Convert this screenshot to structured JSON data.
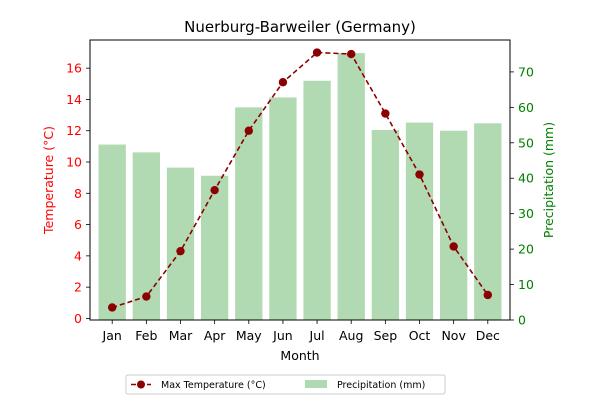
{
  "chart_data": {
    "type": "bar",
    "title": "Nuerburg-Barweiler (Germany)",
    "xlabel": "Month",
    "ylabel_left": "Temperature (°C)",
    "ylabel_right": "Precipitation (mm)",
    "categories": [
      "Jan",
      "Feb",
      "Mar",
      "Apr",
      "May",
      "Jun",
      "Jul",
      "Aug",
      "Sep",
      "Oct",
      "Nov",
      "Dec"
    ],
    "temp_ylim": [
      -0.1,
      17.8
    ],
    "temp_ticks": [
      "0",
      "2",
      "4",
      "6",
      "8",
      "10",
      "12",
      "14",
      "16"
    ],
    "precip_ylim": [
      0,
      79
    ],
    "precip_ticks": [
      "0",
      "10",
      "20",
      "30",
      "40",
      "50",
      "60",
      "70"
    ],
    "grid": false,
    "legend_position": "bottom-center",
    "series": [
      {
        "name": "Max Temperature (°C)",
        "type": "line",
        "axis": "left",
        "color": "#8b0000",
        "values": [
          0.7,
          1.4,
          4.3,
          8.2,
          12.0,
          15.1,
          17.0,
          16.9,
          13.1,
          9.2,
          4.6,
          1.5
        ]
      },
      {
        "name": "Precipitation (mm)",
        "type": "bar",
        "axis": "right",
        "color": "#2e9b2e",
        "values": [
          49.5,
          47.3,
          43.0,
          40.7,
          60.0,
          62.8,
          67.5,
          75.3,
          53.6,
          55.7,
          53.4,
          55.5
        ]
      }
    ],
    "left_axis_color": "#ff0000",
    "right_axis_color": "#008000"
  }
}
